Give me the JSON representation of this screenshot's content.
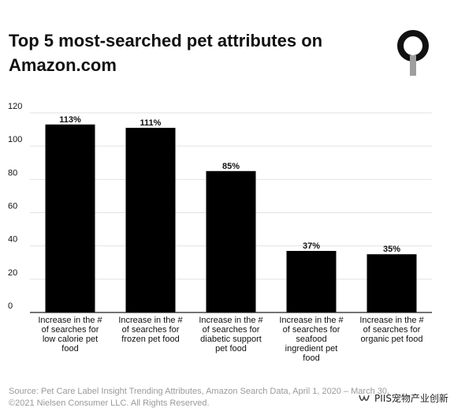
{
  "title": "Top 5 most-searched pet attributes on Amazon.com",
  "colors": {
    "bar": "#000000",
    "grid": "#e2e2e2",
    "axis": "#222222",
    "text": "#111111",
    "footer": "#9a9a9a"
  },
  "icons": {
    "logo": "key-ring-logo",
    "watermark": "wechat-channel-icon"
  },
  "chart_data": {
    "type": "bar",
    "title": "Top 5 most-searched pet attributes on Amazon.com",
    "xlabel": "",
    "ylabel": "",
    "ylim": [
      0,
      120
    ],
    "yticks": [
      0,
      20,
      40,
      60,
      80,
      100,
      120
    ],
    "grid": true,
    "legend": "none",
    "categories": [
      "Increase in the # of searches for low calorie pet food",
      "Increase in the # of searches for frozen pet food",
      "Increase in the # of searches for diabetic support pet food",
      "Increase in the # of searches for seafood ingredient pet food",
      "Increase in the # of searches for organic pet food"
    ],
    "category_lines": [
      [
        "Increase in the #",
        "of searches for",
        "low calorie pet",
        "food"
      ],
      [
        "Increase in the #",
        "of searches for",
        "frozen pet food"
      ],
      [
        "Increase in the #",
        "of searches for",
        "diabetic support",
        "pet food"
      ],
      [
        "Increase in the #",
        "of searches for",
        "seafood",
        "ingredient pet",
        "food"
      ],
      [
        "Increase in the #",
        "of searches for",
        "organic pet food"
      ]
    ],
    "values": [
      113,
      111,
      85,
      37,
      35
    ],
    "data_labels": [
      "113%",
      "111%",
      "85%",
      "37%",
      "35%"
    ]
  },
  "footer": {
    "source": "Source: Pet Care Label Insight Trending Attributes, Amazon Search Data, April 1, 2020 – March 30,",
    "copyright": "©2021 Nielsen Consumer LLC. All Rights Reserved."
  },
  "watermark": {
    "text": "PIIS宠物产业创新"
  }
}
